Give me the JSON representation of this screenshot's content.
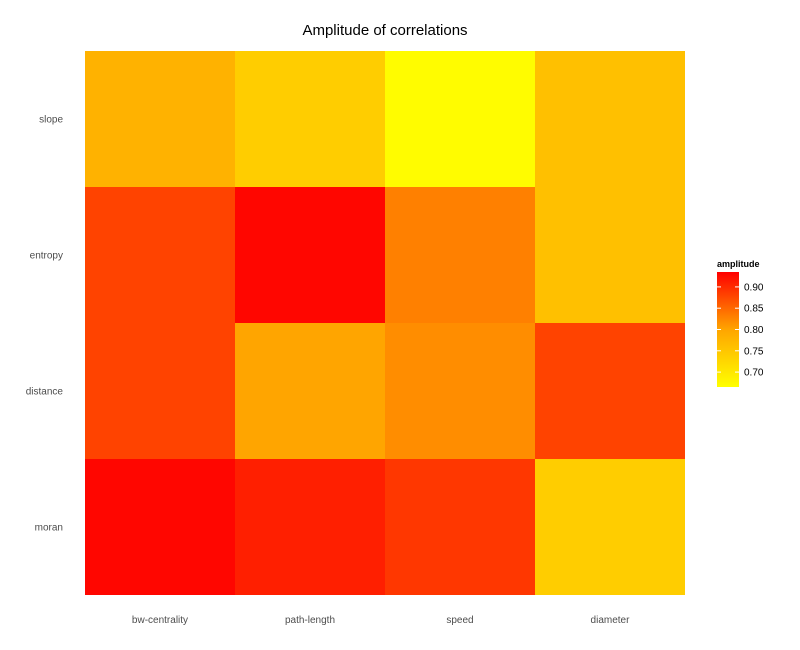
{
  "chart_data": {
    "type": "heatmap",
    "title": "Amplitude of correlations",
    "xlabel": "",
    "ylabel": "",
    "x_categories": [
      "bw-centrality",
      "path-length",
      "speed",
      "diameter"
    ],
    "y_categories": [
      "slope",
      "entropy",
      "distance",
      "moran"
    ],
    "values": [
      [
        0.78,
        0.74,
        0.67,
        0.76
      ],
      [
        0.88,
        0.93,
        0.83,
        0.76
      ],
      [
        0.88,
        0.8,
        0.82,
        0.88
      ],
      [
        0.93,
        0.91,
        0.89,
        0.74
      ]
    ],
    "legend": {
      "title": "amplitude",
      "position": "right",
      "ticks": [
        0.9,
        0.85,
        0.8,
        0.75,
        0.7
      ],
      "tick_labels": [
        "0.90",
        "0.85",
        "0.80",
        "0.75",
        "0.70"
      ],
      "min": 0.665,
      "max": 0.935,
      "color_low": "#ffff00",
      "color_high": "#ff0000"
    },
    "grid": false
  }
}
